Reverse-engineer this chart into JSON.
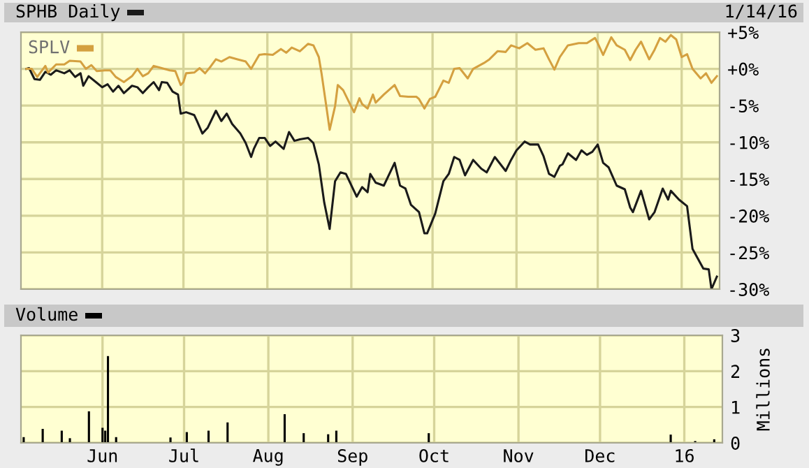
{
  "chart_data": [
    {
      "type": "line",
      "legend": "top left",
      "grid": true,
      "tick_labels": "y",
      "annotations": [
        "1/14/16"
      ],
      "xlim": [
        "2015-05-02",
        "2016-01-15"
      ],
      "xticks": [
        {
          "value": "2015-06-01",
          "label": null
        },
        {
          "value": "2015-07-01",
          "label": null
        },
        {
          "value": "2015-08-01",
          "label": null
        },
        {
          "value": "2015-09-01",
          "label": null
        },
        {
          "value": "2015-10-01",
          "label": null
        },
        {
          "value": "2015-11-01",
          "label": null
        },
        {
          "value": "2015-12-01",
          "label": null
        },
        {
          "value": "2016-01-01",
          "label": null
        }
      ],
      "ylim": [
        -30,
        5
      ],
      "yticks": [
        {
          "value": 5,
          "label": "+5%"
        },
        {
          "value": 0,
          "label": "+0%"
        },
        {
          "value": -5,
          "label": "-5%"
        },
        {
          "value": -10,
          "label": "-10%"
        },
        {
          "value": -15,
          "label": "-15%"
        },
        {
          "value": -20,
          "label": "-20%"
        },
        {
          "value": -25,
          "label": "-25%"
        },
        {
          "value": -30,
          "label": "-30%"
        }
      ],
      "series": [
        {
          "name": "SPHB Daily",
          "color": "#1a1a1a",
          "x": [
            "2015-05-04",
            "2015-05-05",
            "2015-05-07",
            "2015-05-09",
            "2015-05-11",
            "2015-05-13",
            "2015-05-15",
            "2015-05-18",
            "2015-05-20",
            "2015-05-22",
            "2015-05-24",
            "2015-05-25",
            "2015-05-27",
            "2015-05-30",
            "2015-06-01",
            "2015-06-03",
            "2015-06-05",
            "2015-06-07",
            "2015-06-09",
            "2015-06-12",
            "2015-06-14",
            "2015-06-16",
            "2015-06-18",
            "2015-06-20",
            "2015-06-22",
            "2015-06-23",
            "2015-06-25",
            "2015-06-27",
            "2015-06-29",
            "2015-06-30",
            "2015-07-02",
            "2015-07-05",
            "2015-07-06",
            "2015-07-08",
            "2015-07-10",
            "2015-07-13",
            "2015-07-15",
            "2015-07-17",
            "2015-07-19",
            "2015-07-22",
            "2015-07-24",
            "2015-07-26",
            "2015-07-27",
            "2015-07-29",
            "2015-07-31",
            "2015-08-02",
            "2015-08-04",
            "2015-08-07",
            "2015-08-09",
            "2015-08-11",
            "2015-08-13",
            "2015-08-16",
            "2015-08-18",
            "2015-08-20",
            "2015-08-22",
            "2015-08-24",
            "2015-08-26",
            "2015-08-28",
            "2015-08-30",
            "2015-09-03",
            "2015-09-05",
            "2015-09-07",
            "2015-09-08",
            "2015-09-10",
            "2015-09-13",
            "2015-09-17",
            "2015-09-19",
            "2015-09-21",
            "2015-09-23",
            "2015-09-26",
            "2015-09-28",
            "2015-09-29",
            "2015-10-02",
            "2015-10-05",
            "2015-10-07",
            "2015-10-09",
            "2015-10-11",
            "2015-10-13",
            "2015-10-16",
            "2015-10-19",
            "2015-10-21",
            "2015-10-24",
            "2015-10-28",
            "2015-10-30",
            "2015-11-01",
            "2015-11-04",
            "2015-11-06",
            "2015-11-09",
            "2015-11-11",
            "2015-11-13",
            "2015-11-15",
            "2015-11-17",
            "2015-11-18",
            "2015-11-20",
            "2015-11-23",
            "2015-11-25",
            "2015-11-27",
            "2015-11-29",
            "2015-12-01",
            "2015-12-03",
            "2015-12-05",
            "2015-12-08",
            "2015-12-11",
            "2015-12-13",
            "2015-12-14",
            "2015-12-17",
            "2015-12-20",
            "2015-12-22",
            "2015-12-25",
            "2015-12-27",
            "2015-12-28",
            "2015-12-31",
            "2016-01-03",
            "2016-01-05",
            "2016-01-09",
            "2016-01-11",
            "2016-01-12",
            "2016-01-14"
          ],
          "values": [
            0.0,
            0.1,
            -1.4,
            -1.5,
            -0.4,
            -0.8,
            -0.2,
            -0.6,
            -0.2,
            -1.1,
            -0.6,
            -2.3,
            -1.0,
            -1.9,
            -2.5,
            -2.1,
            -3.1,
            -2.3,
            -3.3,
            -2.3,
            -2.5,
            -3.3,
            -2.5,
            -1.8,
            -2.9,
            -1.8,
            -1.9,
            -3.1,
            -3.5,
            -6.1,
            -5.9,
            -6.3,
            -7.1,
            -8.8,
            -8.0,
            -5.7,
            -7.1,
            -6.1,
            -7.5,
            -8.8,
            -10.1,
            -12.0,
            -10.9,
            -9.4,
            -9.4,
            -10.5,
            -9.9,
            -10.9,
            -8.6,
            -9.8,
            -9.6,
            -9.4,
            -10.1,
            -13.0,
            -18.2,
            -21.8,
            -15.3,
            -14.1,
            -14.3,
            -17.4,
            -16.1,
            -16.8,
            -14.3,
            -15.5,
            -15.9,
            -12.8,
            -15.9,
            -16.3,
            -18.5,
            -19.5,
            -22.4,
            -22.4,
            -19.7,
            -15.3,
            -14.3,
            -12.0,
            -12.4,
            -14.5,
            -12.4,
            -13.6,
            -14.1,
            -12.0,
            -13.9,
            -12.4,
            -11.1,
            -9.9,
            -10.3,
            -10.3,
            -11.9,
            -14.3,
            -14.7,
            -13.2,
            -13.0,
            -11.5,
            -12.4,
            -11.1,
            -11.7,
            -11.3,
            -10.3,
            -12.8,
            -13.4,
            -15.9,
            -16.4,
            -18.9,
            -19.5,
            -16.6,
            -20.5,
            -19.5,
            -16.3,
            -17.8,
            -16.6,
            -17.8,
            -18.7,
            -24.5,
            -27.2,
            -27.3,
            -30.0,
            -28.3
          ]
        },
        {
          "name": "SPLV",
          "color": "#d4a040",
          "x": [
            "2015-05-04",
            "2015-05-06",
            "2015-05-08",
            "2015-05-11",
            "2015-05-12",
            "2015-05-15",
            "2015-05-18",
            "2015-05-20",
            "2015-05-24",
            "2015-05-26",
            "2015-05-28",
            "2015-05-30",
            "2015-06-02",
            "2015-06-04",
            "2015-06-06",
            "2015-06-09",
            "2015-06-12",
            "2015-06-14",
            "2015-06-16",
            "2015-06-18",
            "2015-06-20",
            "2015-06-22",
            "2015-06-26",
            "2015-06-28",
            "2015-06-30",
            "2015-07-01",
            "2015-07-02",
            "2015-07-05",
            "2015-07-07",
            "2015-07-09",
            "2015-07-11",
            "2015-07-13",
            "2015-07-15",
            "2015-07-18",
            "2015-07-21",
            "2015-07-24",
            "2015-07-26",
            "2015-07-29",
            "2015-07-31",
            "2015-08-03",
            "2015-08-06",
            "2015-08-08",
            "2015-08-10",
            "2015-08-13",
            "2015-08-16",
            "2015-08-18",
            "2015-08-20",
            "2015-08-21",
            "2015-08-23",
            "2015-08-24",
            "2015-08-26",
            "2015-08-27",
            "2015-08-29",
            "2015-09-02",
            "2015-09-04",
            "2015-09-05",
            "2015-09-07",
            "2015-09-09",
            "2015-09-10",
            "2015-09-13",
            "2015-09-17",
            "2015-09-19",
            "2015-09-22",
            "2015-09-25",
            "2015-09-26",
            "2015-09-28",
            "2015-09-30",
            "2015-10-02",
            "2015-10-05",
            "2015-10-07",
            "2015-10-09",
            "2015-10-11",
            "2015-10-14",
            "2015-10-16",
            "2015-10-20",
            "2015-10-22",
            "2015-10-25",
            "2015-10-28",
            "2015-10-30",
            "2015-11-02",
            "2015-11-05",
            "2015-11-08",
            "2015-11-11",
            "2015-11-13",
            "2015-11-15",
            "2015-11-17",
            "2015-11-20",
            "2015-11-24",
            "2015-11-27",
            "2015-11-30",
            "2015-12-01",
            "2015-12-03",
            "2015-12-06",
            "2015-12-08",
            "2015-12-11",
            "2015-12-13",
            "2015-12-15",
            "2015-12-17",
            "2015-12-18",
            "2015-12-20",
            "2015-12-22",
            "2015-12-24",
            "2015-12-26",
            "2015-12-28",
            "2015-12-30",
            "2016-01-01",
            "2016-01-03",
            "2016-01-05",
            "2016-01-08",
            "2016-01-10",
            "2016-01-12",
            "2016-01-14"
          ],
          "values": [
            0.0,
            0.0,
            -1.1,
            0.4,
            -0.5,
            0.6,
            0.6,
            1.1,
            1.0,
            0.0,
            0.5,
            -0.3,
            -0.2,
            -0.2,
            -1.1,
            -1.8,
            -1.0,
            0.0,
            -1.0,
            -0.6,
            0.4,
            0.2,
            -0.2,
            -0.3,
            -2.2,
            -1.8,
            -0.6,
            -0.5,
            0.1,
            -0.6,
            0.3,
            1.3,
            1.0,
            1.6,
            1.3,
            1.0,
            0.0,
            1.9,
            2.0,
            1.9,
            2.7,
            2.2,
            2.9,
            2.4,
            3.4,
            3.2,
            1.6,
            -0.6,
            -5.7,
            -8.3,
            -5.1,
            -2.2,
            -2.9,
            -5.9,
            -4.0,
            -4.8,
            -5.4,
            -3.5,
            -4.6,
            -3.5,
            -2.2,
            -3.7,
            -3.8,
            -3.8,
            -4.1,
            -5.4,
            -4.1,
            -3.8,
            -1.6,
            -1.9,
            0.0,
            0.1,
            -1.3,
            0.0,
            0.8,
            1.3,
            2.4,
            2.3,
            3.2,
            2.8,
            3.5,
            2.6,
            2.8,
            1.3,
            -0.1,
            1.6,
            3.2,
            3.5,
            3.5,
            4.2,
            3.5,
            1.9,
            4.3,
            3.2,
            2.6,
            1.2,
            2.6,
            3.7,
            2.9,
            1.3,
            2.6,
            4.2,
            3.7,
            4.6,
            4.0,
            1.6,
            2.0,
            0.0,
            -1.3,
            -0.6,
            -1.9,
            -1.0
          ]
        }
      ]
    },
    {
      "type": "bar",
      "legend": "top left",
      "grid": true,
      "ylabel": "Millions",
      "xlim": [
        "2015-05-02",
        "2016-01-15"
      ],
      "xticks": [
        {
          "value": "2015-06-01",
          "label": "Jun"
        },
        {
          "value": "2015-07-01",
          "label": "Jul"
        },
        {
          "value": "2015-08-01",
          "label": "Aug"
        },
        {
          "value": "2015-09-01",
          "label": "Sep"
        },
        {
          "value": "2015-10-01",
          "label": "Oct"
        },
        {
          "value": "2015-11-01",
          "label": "Nov"
        },
        {
          "value": "2015-12-01",
          "label": "Dec"
        },
        {
          "value": "2016-01-01",
          "label": "16"
        }
      ],
      "ylim": [
        0,
        3
      ],
      "yticks": [
        0,
        1,
        2,
        3
      ],
      "series": [
        {
          "name": "Volume",
          "color": "#000000",
          "x": [
            "2015-05-03",
            "2015-05-10",
            "2015-05-17",
            "2015-05-20",
            "2015-05-27",
            "2015-06-01",
            "2015-06-02",
            "2015-06-03",
            "2015-06-06",
            "2015-06-26",
            "2015-07-02",
            "2015-07-10",
            "2015-07-17",
            "2015-08-07",
            "2015-08-14",
            "2015-08-23",
            "2015-08-26",
            "2015-09-29",
            "2015-12-27",
            "2016-01-05",
            "2016-01-12"
          ],
          "values": [
            0.16,
            0.39,
            0.34,
            0.13,
            0.88,
            0.42,
            0.34,
            2.42,
            0.16,
            0.15,
            0.3,
            0.34,
            0.57,
            0.8,
            0.27,
            0.24,
            0.34,
            0.27,
            0.23,
            0.05,
            0.1
          ]
        }
      ]
    }
  ]
}
